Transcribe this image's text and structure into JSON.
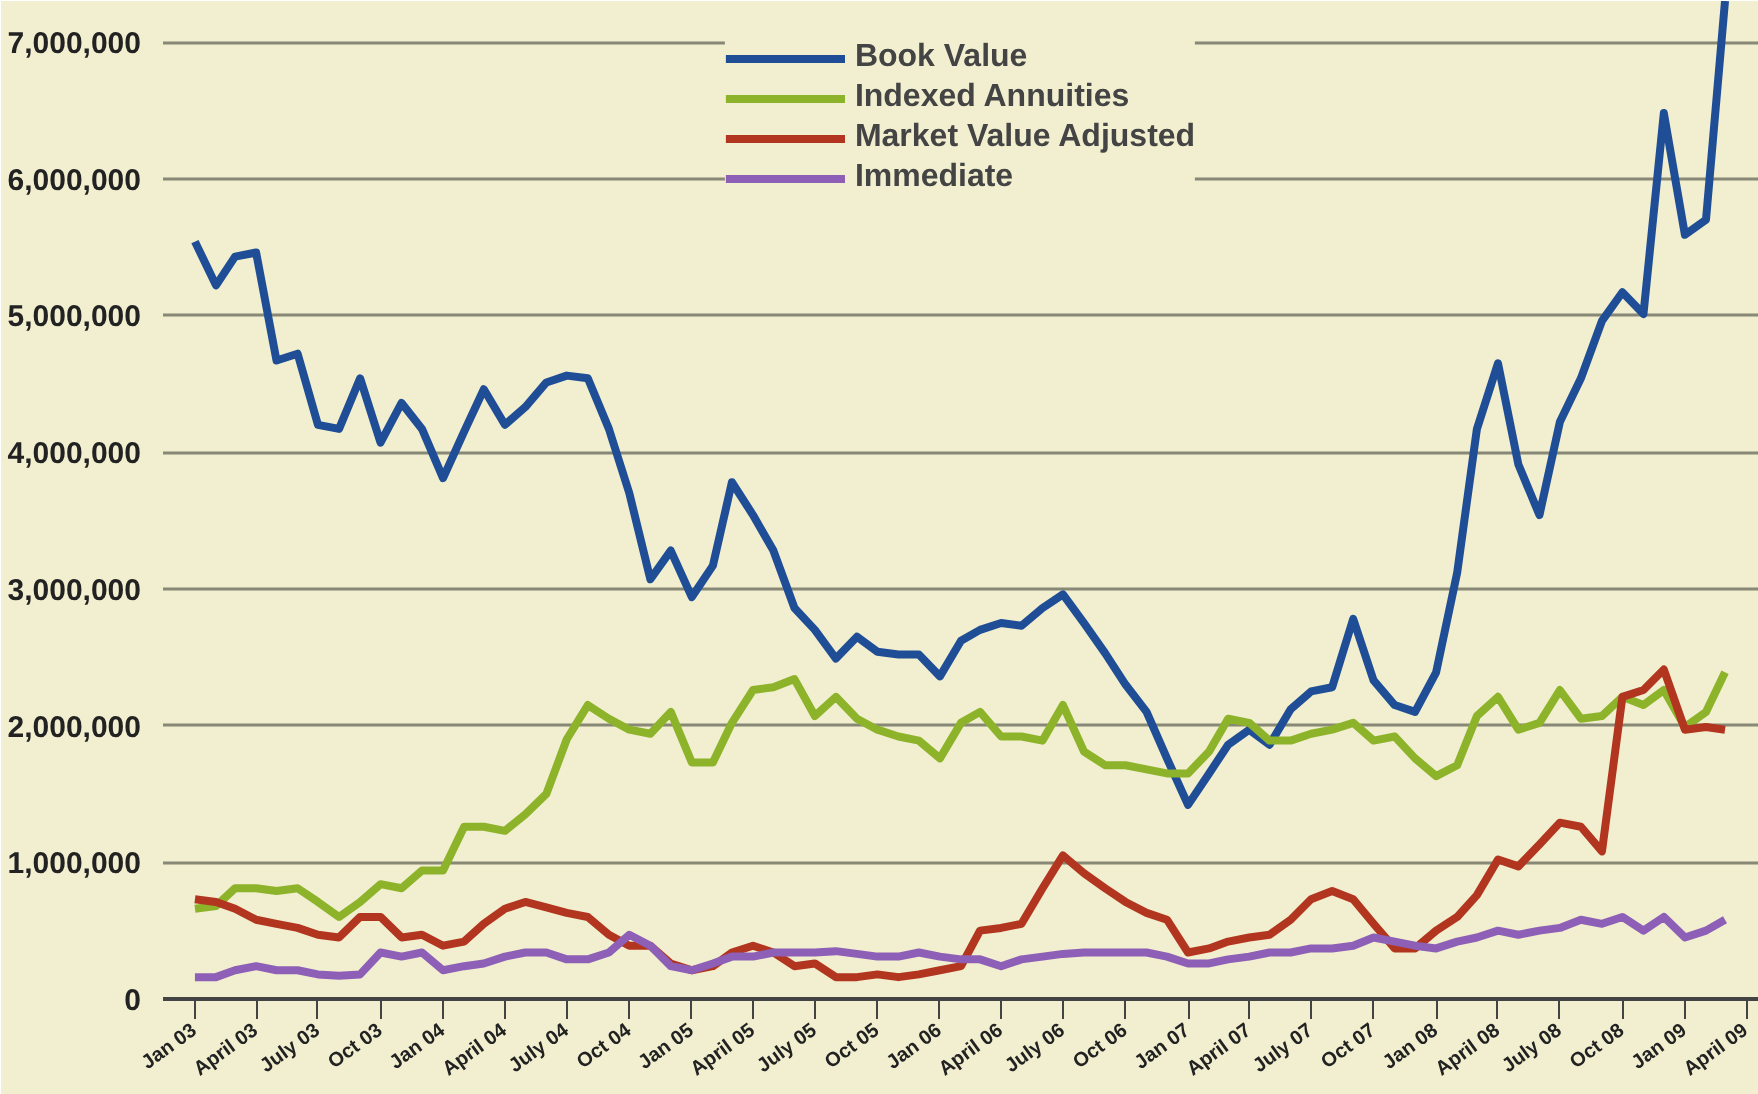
{
  "chart_data": {
    "type": "line",
    "x": [
      "2003-01",
      "2003-02",
      "2003-03",
      "2003-04",
      "2003-05",
      "2003-06",
      "2003-07",
      "2003-08",
      "2003-09",
      "2003-10",
      "2003-11",
      "2003-12",
      "2004-01",
      "2004-02",
      "2004-03",
      "2004-04",
      "2004-05",
      "2004-06",
      "2004-07",
      "2004-08",
      "2004-09",
      "2004-10",
      "2004-11",
      "2004-12",
      "2005-01",
      "2005-02",
      "2005-03",
      "2005-04",
      "2005-05",
      "2005-06",
      "2005-07",
      "2005-08",
      "2005-09",
      "2005-10",
      "2005-11",
      "2005-12",
      "2006-01",
      "2006-02",
      "2006-03",
      "2006-04",
      "2006-05",
      "2006-06",
      "2006-07",
      "2006-08",
      "2006-09",
      "2006-10",
      "2006-11",
      "2006-12",
      "2007-01",
      "2007-02",
      "2007-03",
      "2007-04",
      "2007-05",
      "2007-06",
      "2007-07",
      "2007-08",
      "2007-09",
      "2007-10",
      "2007-11",
      "2007-12",
      "2008-01",
      "2008-02",
      "2008-03",
      "2008-04",
      "2008-05",
      "2008-06",
      "2008-07",
      "2008-08",
      "2008-09",
      "2008-10",
      "2008-11",
      "2008-12",
      "2009-01",
      "2009-02",
      "2009-03"
    ],
    "series": [
      {
        "name": "Book Value",
        "color": "#1f4e96",
        "values": [
          5540000,
          5220000,
          5430000,
          5460000,
          4670000,
          4720000,
          4200000,
          4170000,
          4540000,
          4070000,
          4360000,
          4170000,
          3810000,
          4150000,
          4460000,
          4200000,
          4330000,
          4510000,
          4560000,
          4540000,
          4170000,
          3700000,
          3070000,
          3280000,
          2940000,
          3170000,
          3780000,
          3540000,
          3280000,
          2860000,
          2700000,
          2490000,
          2650000,
          2540000,
          2520000,
          2520000,
          2360000,
          2620000,
          2700000,
          2750000,
          2730000,
          2860000,
          2960000,
          2750000,
          2530000,
          2300000,
          2100000,
          1760000,
          1420000,
          1650000,
          1860000,
          1970000,
          1860000,
          2120000,
          2250000,
          2280000,
          2780000,
          2330000,
          2150000,
          2100000,
          2390000,
          3120000,
          4170000,
          4650000,
          3910000,
          3540000,
          4220000,
          4540000,
          4960000,
          5170000,
          5010000,
          6480000,
          5590000,
          5700000,
          7300000
        ]
      },
      {
        "name": "Indexed Annuities",
        "color": "#8db32a",
        "values": [
          660000,
          680000,
          810000,
          810000,
          790000,
          810000,
          710000,
          600000,
          710000,
          840000,
          810000,
          940000,
          940000,
          1260000,
          1260000,
          1230000,
          1350000,
          1500000,
          1900000,
          2150000,
          2050000,
          1970000,
          1940000,
          2100000,
          1730000,
          1730000,
          2020000,
          2260000,
          2280000,
          2340000,
          2070000,
          2210000,
          2050000,
          1970000,
          1920000,
          1890000,
          1760000,
          2020000,
          2100000,
          1920000,
          1920000,
          1890000,
          2150000,
          1810000,
          1710000,
          1710000,
          1680000,
          1650000,
          1650000,
          1810000,
          2050000,
          2020000,
          1890000,
          1890000,
          1940000,
          1970000,
          2020000,
          1890000,
          1920000,
          1760000,
          1630000,
          1710000,
          2070000,
          2210000,
          1970000,
          2020000,
          2260000,
          2050000,
          2070000,
          2210000,
          2150000,
          2260000,
          1990000,
          2100000,
          2390000
        ]
      },
      {
        "name": "Market Value Adjusted",
        "color": "#b2351f",
        "values": [
          730000,
          710000,
          660000,
          580000,
          550000,
          520000,
          470000,
          450000,
          600000,
          600000,
          450000,
          470000,
          390000,
          420000,
          550000,
          660000,
          710000,
          670000,
          630000,
          600000,
          470000,
          390000,
          390000,
          260000,
          210000,
          240000,
          340000,
          390000,
          340000,
          240000,
          260000,
          160000,
          160000,
          180000,
          160000,
          180000,
          210000,
          240000,
          500000,
          520000,
          550000,
          810000,
          1050000,
          920000,
          810000,
          710000,
          630000,
          580000,
          340000,
          370000,
          420000,
          450000,
          470000,
          580000,
          730000,
          790000,
          730000,
          550000,
          370000,
          370000,
          500000,
          600000,
          760000,
          1020000,
          970000,
          1130000,
          1290000,
          1260000,
          1080000,
          2210000,
          2260000,
          2410000,
          1970000,
          1990000,
          1970000
        ]
      },
      {
        "name": "Immediate",
        "color": "#8e5fb6",
        "values": [
          160000,
          160000,
          210000,
          240000,
          210000,
          210000,
          180000,
          170000,
          180000,
          340000,
          310000,
          340000,
          210000,
          240000,
          260000,
          310000,
          340000,
          340000,
          290000,
          290000,
          340000,
          470000,
          390000,
          240000,
          210000,
          260000,
          310000,
          310000,
          340000,
          340000,
          340000,
          350000,
          330000,
          310000,
          310000,
          340000,
          310000,
          290000,
          290000,
          240000,
          290000,
          310000,
          330000,
          340000,
          340000,
          340000,
          340000,
          310000,
          260000,
          260000,
          290000,
          310000,
          340000,
          340000,
          370000,
          370000,
          390000,
          450000,
          420000,
          390000,
          370000,
          420000,
          450000,
          500000,
          470000,
          500000,
          520000,
          580000,
          550000,
          600000,
          500000,
          600000,
          450000,
          500000,
          580000
        ]
      }
    ],
    "xlim": [
      "2002-11-15",
      "2009-04-20"
    ],
    "xticks": [
      {
        "value": "2003-01",
        "label": "Jan 03"
      },
      {
        "value": "2003-04",
        "label": "April 03"
      },
      {
        "value": "2003-07",
        "label": "July 03"
      },
      {
        "value": "2003-10",
        "label": "Oct 03"
      },
      {
        "value": "2004-01",
        "label": "Jan 04"
      },
      {
        "value": "2004-04",
        "label": "April 04"
      },
      {
        "value": "2004-07",
        "label": "July 04"
      },
      {
        "value": "2004-10",
        "label": "Oct 04"
      },
      {
        "value": "2005-01",
        "label": "Jan 05"
      },
      {
        "value": "2005-04",
        "label": "April 05"
      },
      {
        "value": "2005-07",
        "label": "July 05"
      },
      {
        "value": "2005-10",
        "label": "Oct 05"
      },
      {
        "value": "2006-01",
        "label": "Jan 06"
      },
      {
        "value": "2006-04",
        "label": "April 06"
      },
      {
        "value": "2006-07",
        "label": "July 06"
      },
      {
        "value": "2006-10",
        "label": "Oct 06"
      },
      {
        "value": "2007-01",
        "label": "Jan 07"
      },
      {
        "value": "2007-04",
        "label": "April 07"
      },
      {
        "value": "2007-07",
        "label": "July 07"
      },
      {
        "value": "2007-10",
        "label": "Oct 07"
      },
      {
        "value": "2008-01",
        "label": "Jan 08"
      },
      {
        "value": "2008-04",
        "label": "April 08"
      },
      {
        "value": "2008-07",
        "label": "July 08"
      },
      {
        "value": "2008-10",
        "label": "Oct 08"
      },
      {
        "value": "2009-01",
        "label": "Jan 09"
      },
      {
        "value": "2009-04",
        "label": "April 09"
      }
    ],
    "ylim": [
      0,
      7300000
    ],
    "yticks": [
      0,
      {
        "value": 1000000,
        "label": "1,000,000"
      },
      {
        "value": 2000000,
        "label": "2,000,000"
      },
      {
        "value": 3000000,
        "label": "3,000,000"
      },
      {
        "value": 4000000,
        "label": "4,000,000"
      },
      {
        "value": 5000000,
        "label": "5,000,000"
      },
      {
        "value": 6000000,
        "label": "6,000,000"
      },
      {
        "value": 7000000,
        "label": "7,000,000"
      }
    ],
    "grid": "y",
    "legend": "top",
    "line_style": "solid"
  }
}
